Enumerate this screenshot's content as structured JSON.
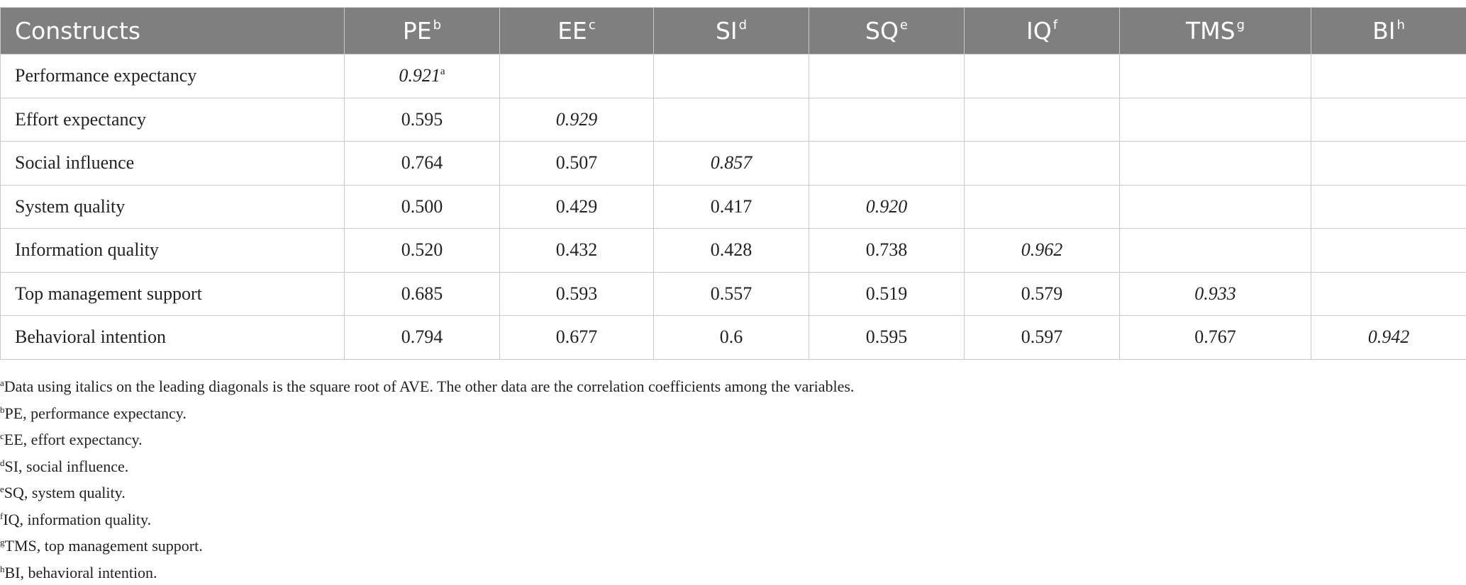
{
  "table": {
    "header": [
      {
        "text": "Constructs"
      },
      {
        "text": "PE",
        "sup": "b"
      },
      {
        "text": "EE",
        "sup": "c"
      },
      {
        "text": "SI",
        "sup": "d"
      },
      {
        "text": "SQ",
        "sup": "e"
      },
      {
        "text": "IQ",
        "sup": "f"
      },
      {
        "text": "TMS",
        "sup": "g"
      },
      {
        "text": "BI",
        "sup": "h"
      }
    ],
    "rows": [
      {
        "label": "Performance expectancy",
        "cells": [
          {
            "text": "0.921",
            "sup": "a"
          }
        ]
      },
      {
        "label": "Effort expectancy",
        "cells": [
          {
            "text": "0.595"
          },
          {
            "text": "0.929"
          }
        ]
      },
      {
        "label": "Social influence",
        "cells": [
          {
            "text": "0.764"
          },
          {
            "text": "0.507"
          },
          {
            "text": "0.857"
          }
        ]
      },
      {
        "label": "System quality",
        "cells": [
          {
            "text": "0.500"
          },
          {
            "text": "0.429"
          },
          {
            "text": "0.417"
          },
          {
            "text": "0.920"
          }
        ]
      },
      {
        "label": "Information quality",
        "cells": [
          {
            "text": "0.520"
          },
          {
            "text": "0.432"
          },
          {
            "text": "0.428"
          },
          {
            "text": "0.738"
          },
          {
            "text": "0.962"
          }
        ]
      },
      {
        "label": "Top management support",
        "cells": [
          {
            "text": "0.685"
          },
          {
            "text": "0.593"
          },
          {
            "text": "0.557"
          },
          {
            "text": "0.519"
          },
          {
            "text": "0.579"
          },
          {
            "text": "0.933"
          }
        ]
      },
      {
        "label": "Behavioral intention",
        "cells": [
          {
            "text": "0.794"
          },
          {
            "text": "0.677"
          },
          {
            "text": "0.6"
          },
          {
            "text": "0.595"
          },
          {
            "text": "0.597"
          },
          {
            "text": "0.767"
          },
          {
            "text": "0.942"
          }
        ]
      }
    ]
  },
  "footnotes": [
    {
      "sup": "a",
      "text": "Data using italics on the leading diagonals is the square root of AVE. The other data are the correlation coefficients among the variables."
    },
    {
      "sup": "b",
      "text": "PE, performance expectancy."
    },
    {
      "sup": "c",
      "text": "EE, effort expectancy."
    },
    {
      "sup": "d",
      "text": "SI, social influence."
    },
    {
      "sup": "e",
      "text": "SQ, system quality."
    },
    {
      "sup": "f",
      "text": "IQ, information quality."
    },
    {
      "sup": "g",
      "text": "TMS, top management support."
    },
    {
      "sup": "h",
      "text": "BI, behavioral intention."
    }
  ]
}
